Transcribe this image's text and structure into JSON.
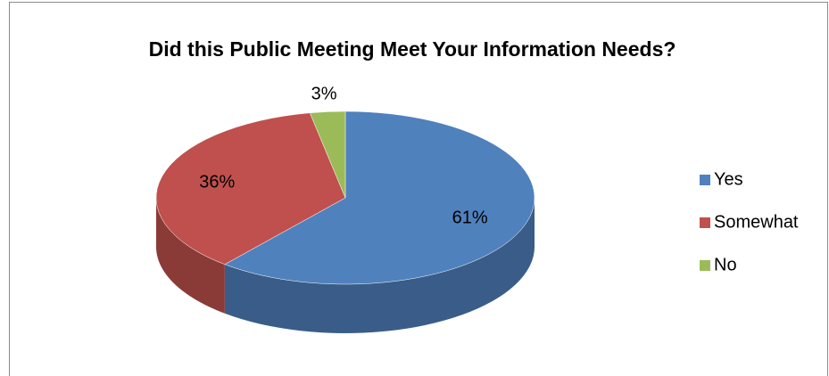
{
  "chart_data": {
    "type": "pie3d",
    "title": "Did this Public Meeting Meet Your Information Needs?",
    "categories": [
      "Yes",
      "Somewhat",
      "No"
    ],
    "values": [
      61,
      36,
      3
    ],
    "value_labels": [
      "61%",
      "36%",
      "3%"
    ],
    "colors": [
      "#4f81bd",
      "#c0504d",
      "#9bbb59"
    ],
    "legend": "right"
  }
}
